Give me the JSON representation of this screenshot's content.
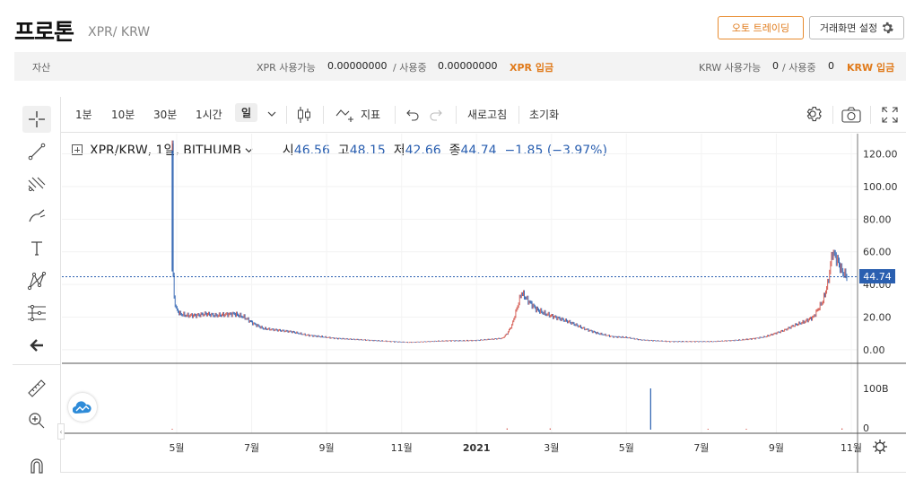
{
  "header": {
    "title": "프로톤",
    "pair": "XPR/ KRW",
    "auto_trading": "오토 트레이딩",
    "settings": "거래화면 설정"
  },
  "asset_bar": {
    "label": "자산",
    "xpr_avail_label": "XPR 사용가능",
    "xpr_avail": "0.00000000",
    "xpr_inuse_label": "/ 사용중",
    "xpr_inuse": "0.00000000",
    "xpr_deposit": "XPR 입금",
    "krw_avail_label": "KRW 사용가능",
    "krw_avail": "0",
    "krw_inuse_label": "/ 사용중",
    "krw_inuse": "0",
    "krw_deposit": "KRW 입금"
  },
  "toolbar": {
    "intervals": [
      "1분",
      "10분",
      "30분",
      "1시간",
      "일"
    ],
    "indicator": "지표",
    "refresh": "새로고침",
    "reset": "초기화"
  },
  "legend": {
    "symbol": "XPR/KRW, 1일, BITHUMB",
    "open_label": "시",
    "open": "46.56",
    "high_label": "고",
    "high": "48.15",
    "low_label": "저",
    "low": "42.66",
    "close_label": "종",
    "close": "44.74",
    "change": "−1.85 (−3.97%)"
  },
  "last_price_tag": "44.74",
  "colors": {
    "up": "#d24f45",
    "down": "#2a5fb0",
    "accent": "#e07a1a"
  },
  "chart_data": {
    "type": "line",
    "y_ticks": [
      "120.00",
      "100.00",
      "80.00",
      "60.00",
      "40.00",
      "20.00",
      "0.00"
    ],
    "ylim": [
      -5,
      128
    ],
    "volume_ticks": [
      "100B",
      "0"
    ],
    "x_ticks": [
      "5월",
      "7월",
      "9월",
      "11월",
      "2021",
      "3월",
      "5월",
      "7월",
      "9월",
      "11월"
    ],
    "series": [
      {
        "values": [
          [
            0,
            122
          ],
          [
            0.4,
            55
          ],
          [
            1,
            45
          ],
          [
            2,
            32
          ],
          [
            4,
            25
          ],
          [
            8,
            22
          ],
          [
            15,
            21
          ],
          [
            25,
            21
          ],
          [
            35,
            22
          ],
          [
            45,
            21
          ],
          [
            55,
            21.5
          ],
          [
            65,
            22
          ],
          [
            75,
            20
          ],
          [
            85,
            16
          ],
          [
            95,
            13
          ],
          [
            110,
            12
          ],
          [
            125,
            11
          ],
          [
            140,
            9
          ],
          [
            155,
            8
          ],
          [
            170,
            7
          ],
          [
            185,
            6.5
          ],
          [
            200,
            6
          ],
          [
            215,
            5.5
          ],
          [
            230,
            5
          ],
          [
            245,
            4.5
          ],
          [
            260,
            4.8
          ],
          [
            275,
            5.2
          ],
          [
            290,
            5.5
          ],
          [
            305,
            5.5
          ],
          [
            320,
            5.8
          ],
          [
            335,
            6.5
          ],
          [
            345,
            7
          ],
          [
            350,
            10
          ],
          [
            355,
            15
          ],
          [
            360,
            25
          ],
          [
            365,
            35
          ],
          [
            372,
            30
          ],
          [
            380,
            25
          ],
          [
            390,
            22
          ],
          [
            400,
            20
          ],
          [
            415,
            17
          ],
          [
            430,
            13
          ],
          [
            445,
            10
          ],
          [
            460,
            8
          ],
          [
            475,
            7.5
          ],
          [
            490,
            6
          ],
          [
            505,
            5.5
          ],
          [
            520,
            5
          ],
          [
            535,
            5
          ],
          [
            550,
            5
          ],
          [
            565,
            5
          ],
          [
            580,
            5.5
          ],
          [
            595,
            6
          ],
          [
            610,
            7
          ],
          [
            620,
            8
          ],
          [
            630,
            10
          ],
          [
            640,
            12
          ],
          [
            650,
            15
          ],
          [
            660,
            17
          ],
          [
            670,
            20
          ],
          [
            675,
            25
          ],
          [
            680,
            30
          ],
          [
            685,
            40
          ],
          [
            690,
            60
          ],
          [
            695,
            55
          ],
          [
            700,
            48
          ],
          [
            705,
            44.74
          ]
        ]
      }
    ],
    "volume": [
      [
        0,
        2
      ],
      [
        350,
        3
      ],
      [
        395,
        3
      ],
      [
        500,
        100
      ],
      [
        560,
        2
      ],
      [
        600,
        2
      ],
      [
        700,
        3
      ]
    ]
  }
}
